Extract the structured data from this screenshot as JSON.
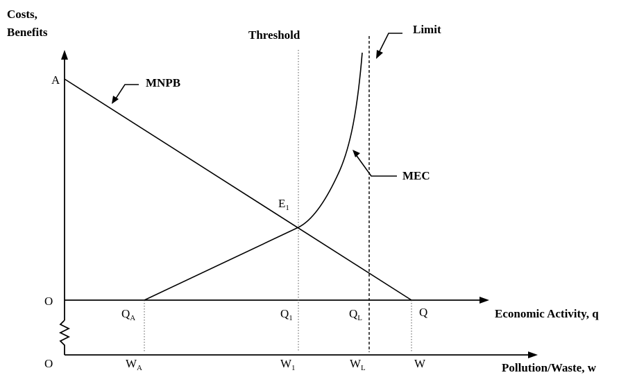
{
  "labels": {
    "y_axis_line1": "Costs,",
    "y_axis_line2": "Benefits",
    "threshold": "Threshold",
    "limit": "Limit",
    "mnpb": "MNPB",
    "mec": "MEC",
    "point_a": "A",
    "point_e1": "E",
    "point_e1_sub": "1",
    "origin_top": "O",
    "origin_bottom": "O",
    "q_axis": "Economic Activity, q",
    "w_axis": "Pollution/Waste, w",
    "qa": "Q",
    "qa_sub": "A",
    "q1": "Q",
    "q1_sub": "1",
    "ql": "Q",
    "ql_sub": "L",
    "q": "Q",
    "wa": "W",
    "wa_sub": "A",
    "w1": "W",
    "w1_sub": "1",
    "wl": "W",
    "wl_sub": "L",
    "w": "W"
  }
}
